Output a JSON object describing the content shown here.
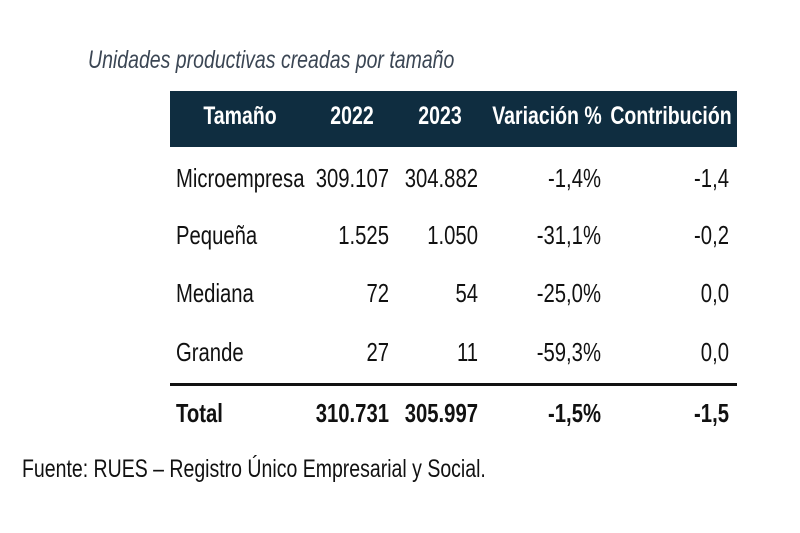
{
  "title": "Unidades productivas creadas por tamaño",
  "table": {
    "headers": [
      "Tamaño",
      "2022",
      "2023",
      "Variación %",
      "Contribución"
    ],
    "rows": [
      [
        "Microempresa",
        "309.107",
        "304.882",
        "-1,4%",
        "-1,4"
      ],
      [
        "Pequeña",
        "1.525",
        "1.050",
        "-31,1%",
        "-0,2"
      ],
      [
        "Mediana",
        "72",
        "54",
        "-25,0%",
        "0,0"
      ],
      [
        "Grande",
        "27",
        "11",
        "-59,3%",
        "0,0"
      ]
    ],
    "total": [
      "Total",
      "310.731",
      "305.997",
      "-1,5%",
      "-1,5"
    ]
  },
  "colors": {
    "header_bg": "#0f2d40",
    "header_text": "#ffffff",
    "title": "#3b4654"
  },
  "source": "Fuente: RUES – Registro Único Empresarial y Social."
}
